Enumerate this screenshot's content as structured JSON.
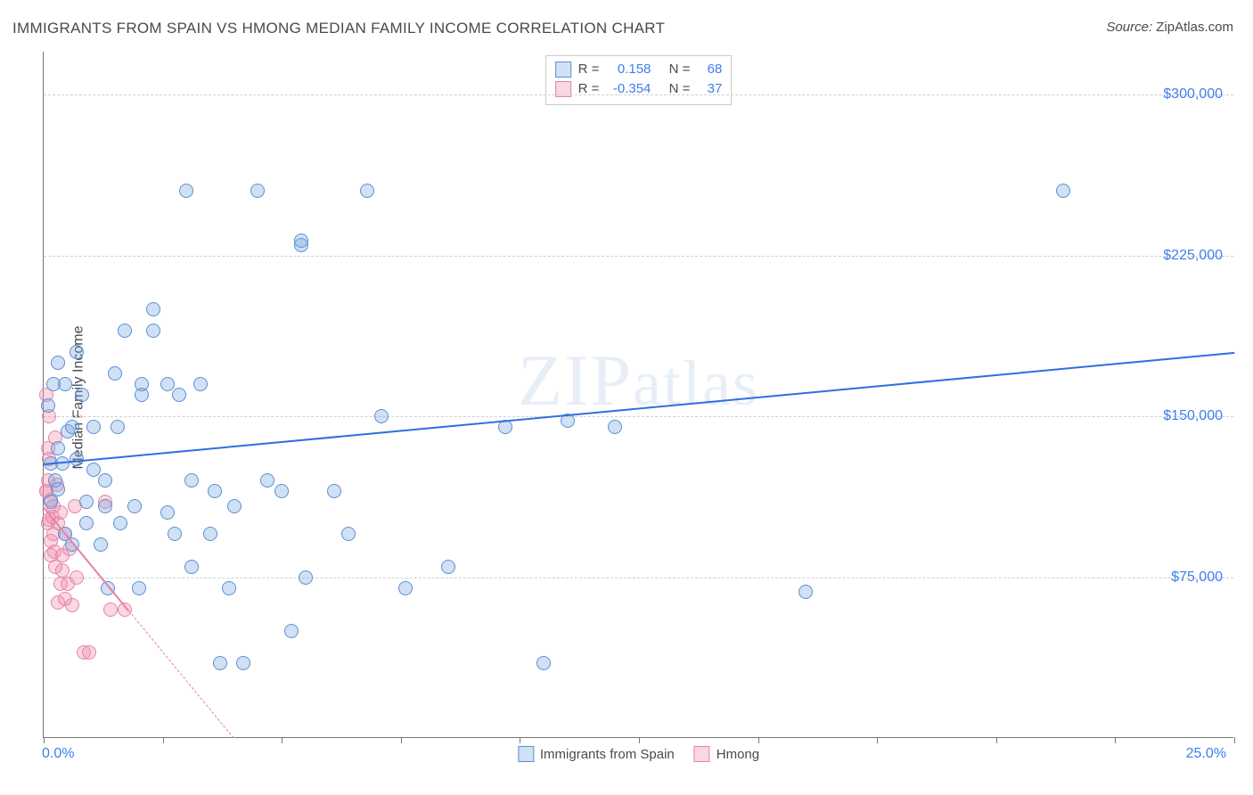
{
  "title": "IMMIGRANTS FROM SPAIN VS HMONG MEDIAN FAMILY INCOME CORRELATION CHART",
  "source_label": "Source:",
  "source_value": "ZipAtlas.com",
  "ylabel": "Median Family Income",
  "watermark": "ZIPatlas",
  "chart": {
    "type": "scatter",
    "xmin": 0.0,
    "xmax": 25.0,
    "ymin": 0,
    "ymax": 320000,
    "xlabel_min": "0.0%",
    "xlabel_max": "25.0%",
    "x_ticks": [
      0.0,
      2.5,
      5.0,
      7.5,
      10.0,
      12.5,
      15.0,
      17.5,
      20.0,
      22.5,
      25.0
    ],
    "y_gridlines": [
      {
        "value": 75000,
        "label": "$75,000"
      },
      {
        "value": 150000,
        "label": "$150,000"
      },
      {
        "value": 225000,
        "label": "$225,000"
      },
      {
        "value": 300000,
        "label": "$300,000"
      }
    ],
    "background_color": "#ffffff",
    "grid_color": "#d0d0d0",
    "axis_color": "#777777",
    "marker_radius": 8,
    "marker_border_width": 1,
    "series": [
      {
        "name": "Immigrants from Spain",
        "fill": "rgba(120,165,225,0.35)",
        "stroke": "#5e8fd0",
        "trend_color": "#2f6fe0",
        "trend_width": 2,
        "trend_dash": "solid",
        "R": "0.158",
        "N": "68",
        "trend": {
          "x1": 0.0,
          "y1": 128000,
          "x2": 25.0,
          "y2": 180000
        },
        "points": [
          {
            "x": 0.1,
            "y": 155000
          },
          {
            "x": 0.15,
            "y": 128000
          },
          {
            "x": 0.15,
            "y": 110000
          },
          {
            "x": 0.2,
            "y": 165000
          },
          {
            "x": 0.25,
            "y": 120000
          },
          {
            "x": 0.3,
            "y": 175000
          },
          {
            "x": 0.3,
            "y": 116000
          },
          {
            "x": 0.3,
            "y": 135000
          },
          {
            "x": 0.4,
            "y": 128000
          },
          {
            "x": 0.45,
            "y": 95000
          },
          {
            "x": 0.5,
            "y": 143000
          },
          {
            "x": 0.45,
            "y": 165000
          },
          {
            "x": 0.6,
            "y": 145000
          },
          {
            "x": 0.6,
            "y": 90000
          },
          {
            "x": 0.7,
            "y": 130000
          },
          {
            "x": 0.8,
            "y": 160000
          },
          {
            "x": 0.7,
            "y": 180000
          },
          {
            "x": 0.9,
            "y": 110000
          },
          {
            "x": 0.9,
            "y": 100000
          },
          {
            "x": 1.05,
            "y": 125000
          },
          {
            "x": 1.05,
            "y": 145000
          },
          {
            "x": 1.2,
            "y": 90000
          },
          {
            "x": 1.3,
            "y": 120000
          },
          {
            "x": 1.3,
            "y": 108000
          },
          {
            "x": 1.35,
            "y": 70000
          },
          {
            "x": 1.5,
            "y": 170000
          },
          {
            "x": 1.55,
            "y": 145000
          },
          {
            "x": 1.6,
            "y": 100000
          },
          {
            "x": 1.7,
            "y": 190000
          },
          {
            "x": 1.9,
            "y": 108000
          },
          {
            "x": 2.0,
            "y": 70000
          },
          {
            "x": 2.05,
            "y": 160000
          },
          {
            "x": 2.05,
            "y": 165000
          },
          {
            "x": 2.3,
            "y": 200000
          },
          {
            "x": 2.3,
            "y": 190000
          },
          {
            "x": 2.6,
            "y": 165000
          },
          {
            "x": 2.6,
            "y": 105000
          },
          {
            "x": 2.75,
            "y": 95000
          },
          {
            "x": 2.85,
            "y": 160000
          },
          {
            "x": 3.0,
            "y": 255000
          },
          {
            "x": 3.1,
            "y": 120000
          },
          {
            "x": 3.1,
            "y": 80000
          },
          {
            "x": 3.3,
            "y": 165000
          },
          {
            "x": 3.5,
            "y": 95000
          },
          {
            "x": 3.6,
            "y": 115000
          },
          {
            "x": 3.7,
            "y": 35000
          },
          {
            "x": 3.9,
            "y": 70000
          },
          {
            "x": 4.0,
            "y": 108000
          },
          {
            "x": 4.2,
            "y": 35000
          },
          {
            "x": 4.5,
            "y": 255000
          },
          {
            "x": 4.7,
            "y": 120000
          },
          {
            "x": 5.0,
            "y": 115000
          },
          {
            "x": 5.2,
            "y": 50000
          },
          {
            "x": 5.4,
            "y": 230000
          },
          {
            "x": 5.4,
            "y": 232000
          },
          {
            "x": 5.5,
            "y": 75000
          },
          {
            "x": 6.1,
            "y": 115000
          },
          {
            "x": 6.4,
            "y": 95000
          },
          {
            "x": 6.8,
            "y": 255000
          },
          {
            "x": 7.1,
            "y": 150000
          },
          {
            "x": 7.6,
            "y": 70000
          },
          {
            "x": 8.5,
            "y": 80000
          },
          {
            "x": 9.7,
            "y": 145000
          },
          {
            "x": 10.5,
            "y": 35000
          },
          {
            "x": 11.0,
            "y": 148000
          },
          {
            "x": 16.0,
            "y": 68000
          },
          {
            "x": 21.4,
            "y": 255000
          },
          {
            "x": 12.0,
            "y": 145000
          }
        ]
      },
      {
        "name": "Hmong",
        "fill": "rgba(240,140,170,0.35)",
        "stroke": "#e386a8",
        "trend_color": "#e87fa4",
        "trend_width": 2,
        "trend_dash": "solid_then_dash",
        "R": "-0.354",
        "N": "37",
        "trend": {
          "x1": 0.0,
          "y1": 108000,
          "x2": 4.0,
          "y2": 0
        },
        "trend_solid_until_x": 1.8,
        "points": [
          {
            "x": 0.05,
            "y": 160000
          },
          {
            "x": 0.05,
            "y": 115000
          },
          {
            "x": 0.05,
            "y": 115000
          },
          {
            "x": 0.1,
            "y": 100000
          },
          {
            "x": 0.1,
            "y": 120000
          },
          {
            "x": 0.12,
            "y": 102000
          },
          {
            "x": 0.12,
            "y": 150000
          },
          {
            "x": 0.12,
            "y": 130000
          },
          {
            "x": 0.15,
            "y": 85000
          },
          {
            "x": 0.15,
            "y": 111000
          },
          {
            "x": 0.15,
            "y": 92000
          },
          {
            "x": 0.18,
            "y": 103000
          },
          {
            "x": 0.2,
            "y": 108000
          },
          {
            "x": 0.2,
            "y": 95000
          },
          {
            "x": 0.22,
            "y": 87000
          },
          {
            "x": 0.25,
            "y": 140000
          },
          {
            "x": 0.25,
            "y": 80000
          },
          {
            "x": 0.28,
            "y": 118000
          },
          {
            "x": 0.3,
            "y": 63000
          },
          {
            "x": 0.3,
            "y": 100000
          },
          {
            "x": 0.35,
            "y": 105000
          },
          {
            "x": 0.35,
            "y": 72000
          },
          {
            "x": 0.4,
            "y": 78000
          },
          {
            "x": 0.4,
            "y": 85000
          },
          {
            "x": 0.45,
            "y": 95000
          },
          {
            "x": 0.45,
            "y": 65000
          },
          {
            "x": 0.5,
            "y": 72000
          },
          {
            "x": 0.55,
            "y": 88000
          },
          {
            "x": 0.6,
            "y": 62000
          },
          {
            "x": 0.65,
            "y": 108000
          },
          {
            "x": 0.7,
            "y": 75000
          },
          {
            "x": 0.85,
            "y": 40000
          },
          {
            "x": 0.95,
            "y": 40000
          },
          {
            "x": 1.3,
            "y": 110000
          },
          {
            "x": 1.4,
            "y": 60000
          },
          {
            "x": 1.7,
            "y": 60000
          },
          {
            "x": 0.1,
            "y": 135000
          }
        ]
      }
    ]
  },
  "legend": {
    "r_label": "R =",
    "n_label": "N ="
  }
}
